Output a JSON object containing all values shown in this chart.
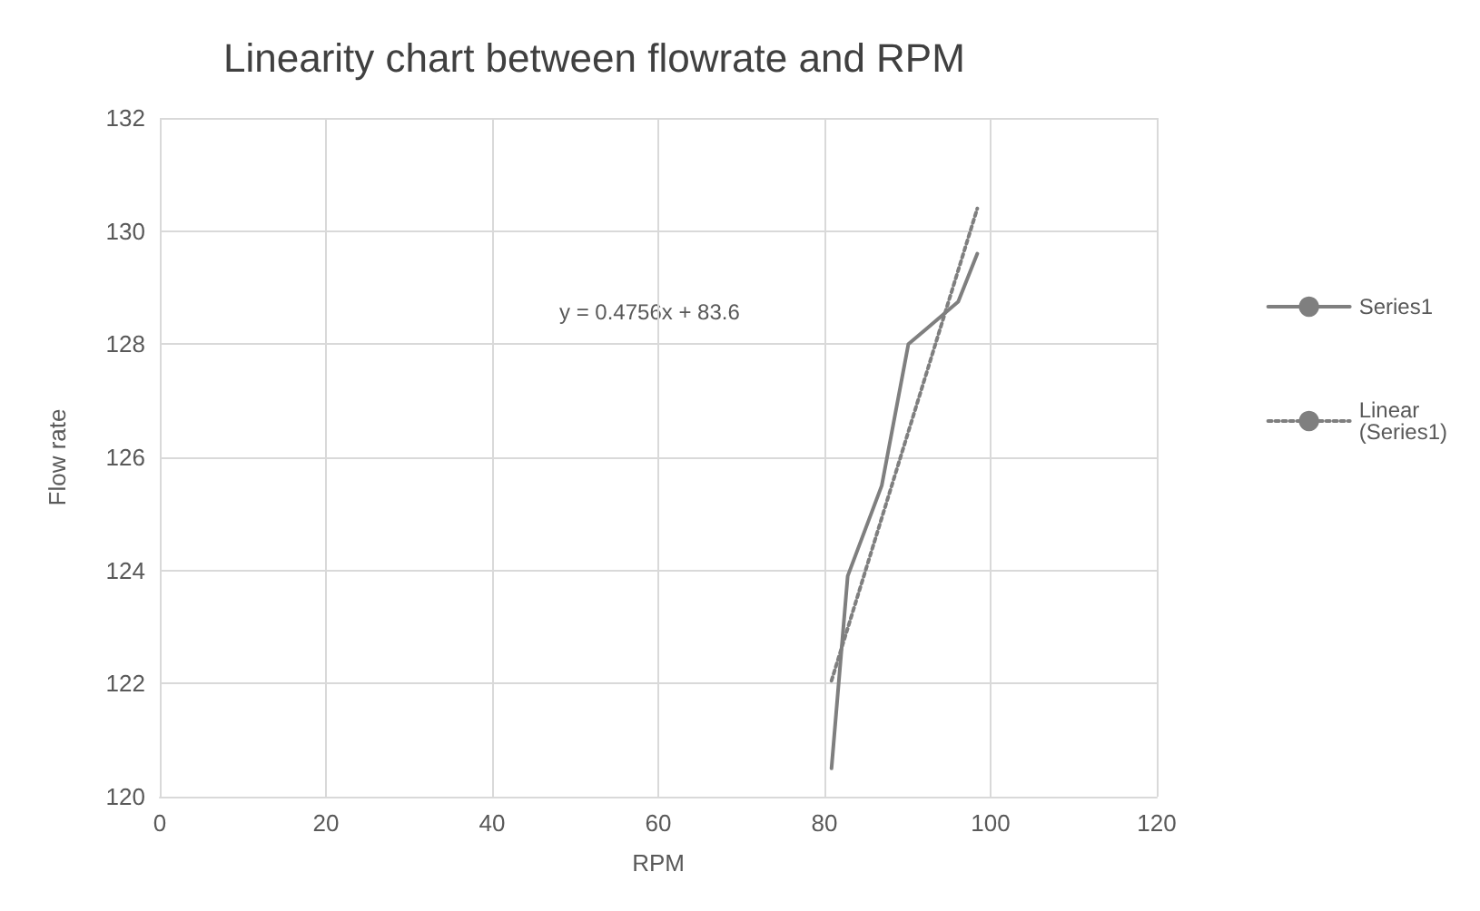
{
  "chart_data": {
    "type": "line",
    "title": "Linearity chart between flowrate and RPM",
    "xlabel": "RPM",
    "ylabel": "Flow rate",
    "series": [
      {
        "name": "Series1",
        "color": "#7f7f7f",
        "x": [
          80.85,
          82.8,
          86.9,
          90.1,
          96.1,
          98.4
        ],
        "values": [
          120.5,
          123.9,
          125.5,
          128.0,
          128.75,
          129.6
        ],
        "line_style": "solid"
      },
      {
        "name": "Linear (Series1)",
        "color": "#7f7f7f",
        "x": [
          80.85,
          98.4
        ],
        "values": [
          122.05,
          130.4
        ],
        "line_style": "dotted"
      }
    ],
    "xlim": [
      0,
      120
    ],
    "xticks": [
      0,
      20,
      40,
      60,
      80,
      100,
      120
    ],
    "ylim": [
      120,
      132
    ],
    "yticks": [
      120,
      122,
      124,
      126,
      128,
      130,
      132
    ],
    "grid": true,
    "legend": "right",
    "marker": "none",
    "annotations": [
      "y = 0.4756x + 83.6"
    ]
  }
}
